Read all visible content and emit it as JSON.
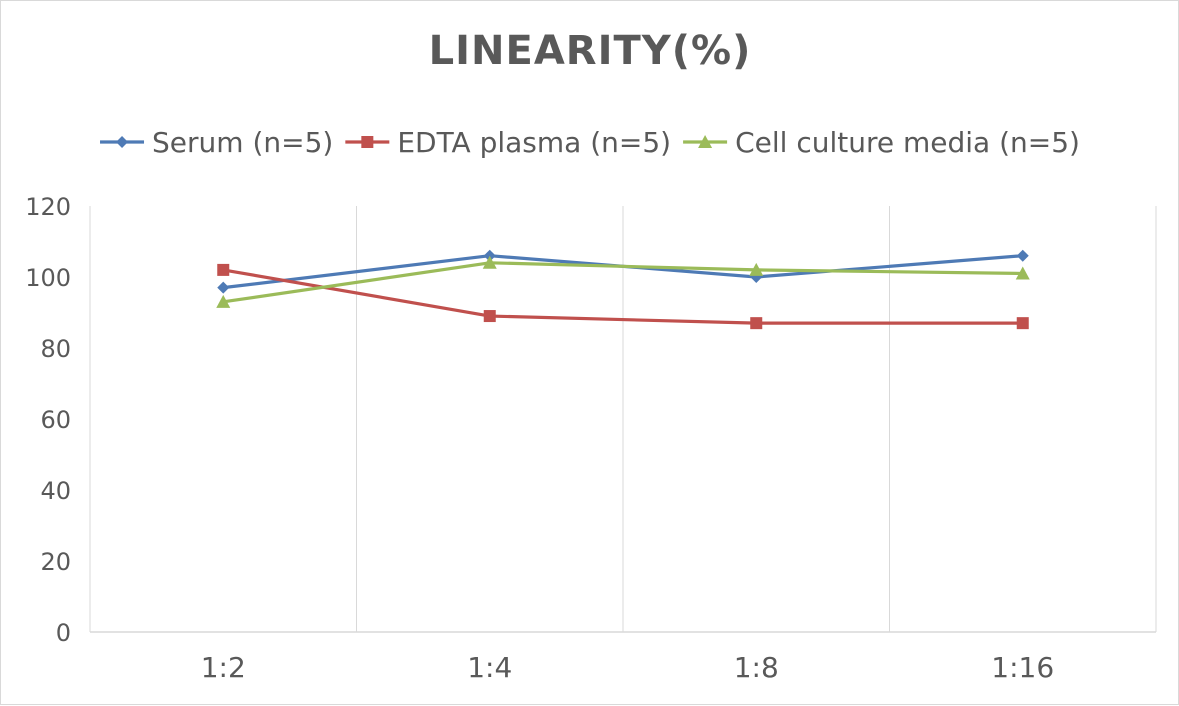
{
  "chart_data": {
    "type": "line",
    "title": "LINEARITY(%)",
    "xlabel": "",
    "ylabel": "",
    "categories": [
      "1:2",
      "1:4",
      "1:8",
      "1:16"
    ],
    "ylim": [
      0,
      120
    ],
    "yticks": [
      0,
      20,
      40,
      60,
      80,
      100,
      120
    ],
    "grid": "vertical",
    "legend_position": "top",
    "series": [
      {
        "name": "Serum (n=5)",
        "values": [
          97,
          106,
          100,
          106
        ],
        "color": "#4e7ab5",
        "marker": "diamond"
      },
      {
        "name": "EDTA plasma (n=5)",
        "values": [
          102,
          89,
          87,
          87
        ],
        "color": "#c0504d",
        "marker": "square"
      },
      {
        "name": "Cell culture media (n=5)",
        "values": [
          93,
          104,
          102,
          101
        ],
        "color": "#9bbb59",
        "marker": "triangle"
      }
    ]
  }
}
